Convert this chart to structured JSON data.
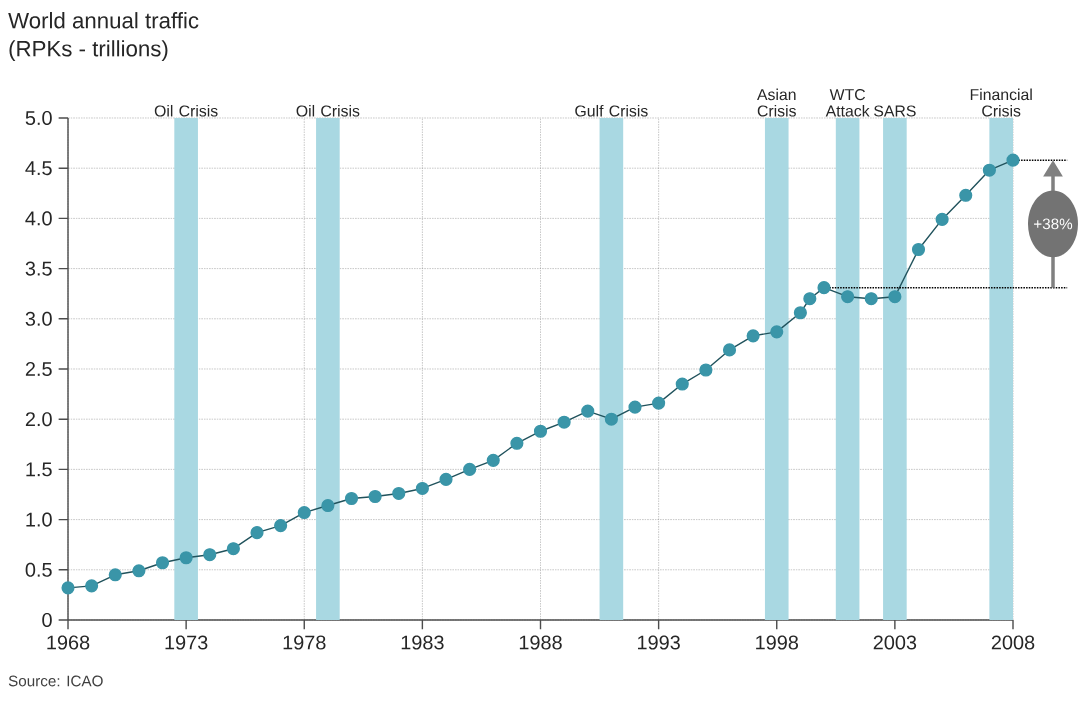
{
  "chart_data": {
    "type": "line",
    "title": "World annual traffic",
    "subtitle": "(RPKs - trillions)",
    "x": [
      1968,
      1969,
      1970,
      1971,
      1972,
      1973,
      1974,
      1975,
      1976,
      1977,
      1978,
      1979,
      1980,
      1981,
      1982,
      1983,
      1984,
      1985,
      1986,
      1987,
      1988,
      1989,
      1990,
      1991,
      1992,
      1993,
      1994,
      1995,
      1996,
      1997,
      1998,
      1999,
      1999.4,
      2000,
      2001,
      2002,
      2003,
      2004,
      2005,
      2006,
      2007,
      2008
    ],
    "series": [
      {
        "color": "#3a95a8",
        "values": [
          0.32,
          0.34,
          0.45,
          0.49,
          0.57,
          0.62,
          0.65,
          0.71,
          0.87,
          0.94,
          1.07,
          1.14,
          1.21,
          1.23,
          1.26,
          1.31,
          1.4,
          1.5,
          1.59,
          1.76,
          1.88,
          1.97,
          2.08,
          2.0,
          2.12,
          2.16,
          2.35,
          2.49,
          2.69,
          2.83,
          2.87,
          3.06,
          3.2,
          3.31,
          3.22,
          3.2,
          3.22,
          3.69,
          3.99,
          4.23,
          4.48,
          4.58
        ]
      }
    ],
    "marker": "circle",
    "line_style": "solid",
    "grid": true,
    "ref_lines": [
      {
        "axis": "y",
        "value": 3.31,
        "color": "#000000",
        "line_style": "dotted"
      }
    ],
    "xlim": [
      1968,
      2008
    ],
    "xticks": [
      1968,
      1973,
      1978,
      1983,
      1988,
      1993,
      1998,
      2003,
      2008
    ],
    "ylim": [
      0,
      5
    ],
    "yticks": [
      0,
      0.5,
      {
        "value": 1,
        "label": "1.0"
      },
      1.5,
      {
        "value": 2,
        "label": "2.0"
      },
      2.5,
      {
        "value": 3,
        "label": "3.0"
      },
      3.5,
      {
        "value": 4,
        "label": "4.0"
      },
      4.5,
      {
        "value": 5,
        "label": "5.0"
      }
    ],
    "bands": [
      {
        "axis": "x",
        "from": 1972.5,
        "to": 1973.5,
        "label": "Oil Crisis",
        "color": "#a9d8e2"
      },
      {
        "axis": "x",
        "from": 1978.5,
        "to": 1979.5,
        "label": "Oil Crisis",
        "color": "#a9d8e2"
      },
      {
        "axis": "x",
        "from": 1990.5,
        "to": 1991.5,
        "label": "Gulf Crisis",
        "color": "#a9d8e2"
      },
      {
        "axis": "x",
        "from": 1997.5,
        "to": 1998.5,
        "label": "Asian Crisis",
        "color": "#a9d8e2"
      },
      {
        "axis": "x",
        "from": 2000.5,
        "to": 2001.5,
        "label": "WTC Attack",
        "color": "#a9d8e2"
      },
      {
        "axis": "x",
        "from": 2002.5,
        "to": 2003.5,
        "label": "SARS",
        "color": "#a9d8e2"
      },
      {
        "axis": "x",
        "from": 2007,
        "to": 2008,
        "label": "Financial Crisis",
        "color": "#a9d8e2"
      }
    ],
    "annotations": [
      "+38%",
      "Source: ICAO"
    ]
  }
}
